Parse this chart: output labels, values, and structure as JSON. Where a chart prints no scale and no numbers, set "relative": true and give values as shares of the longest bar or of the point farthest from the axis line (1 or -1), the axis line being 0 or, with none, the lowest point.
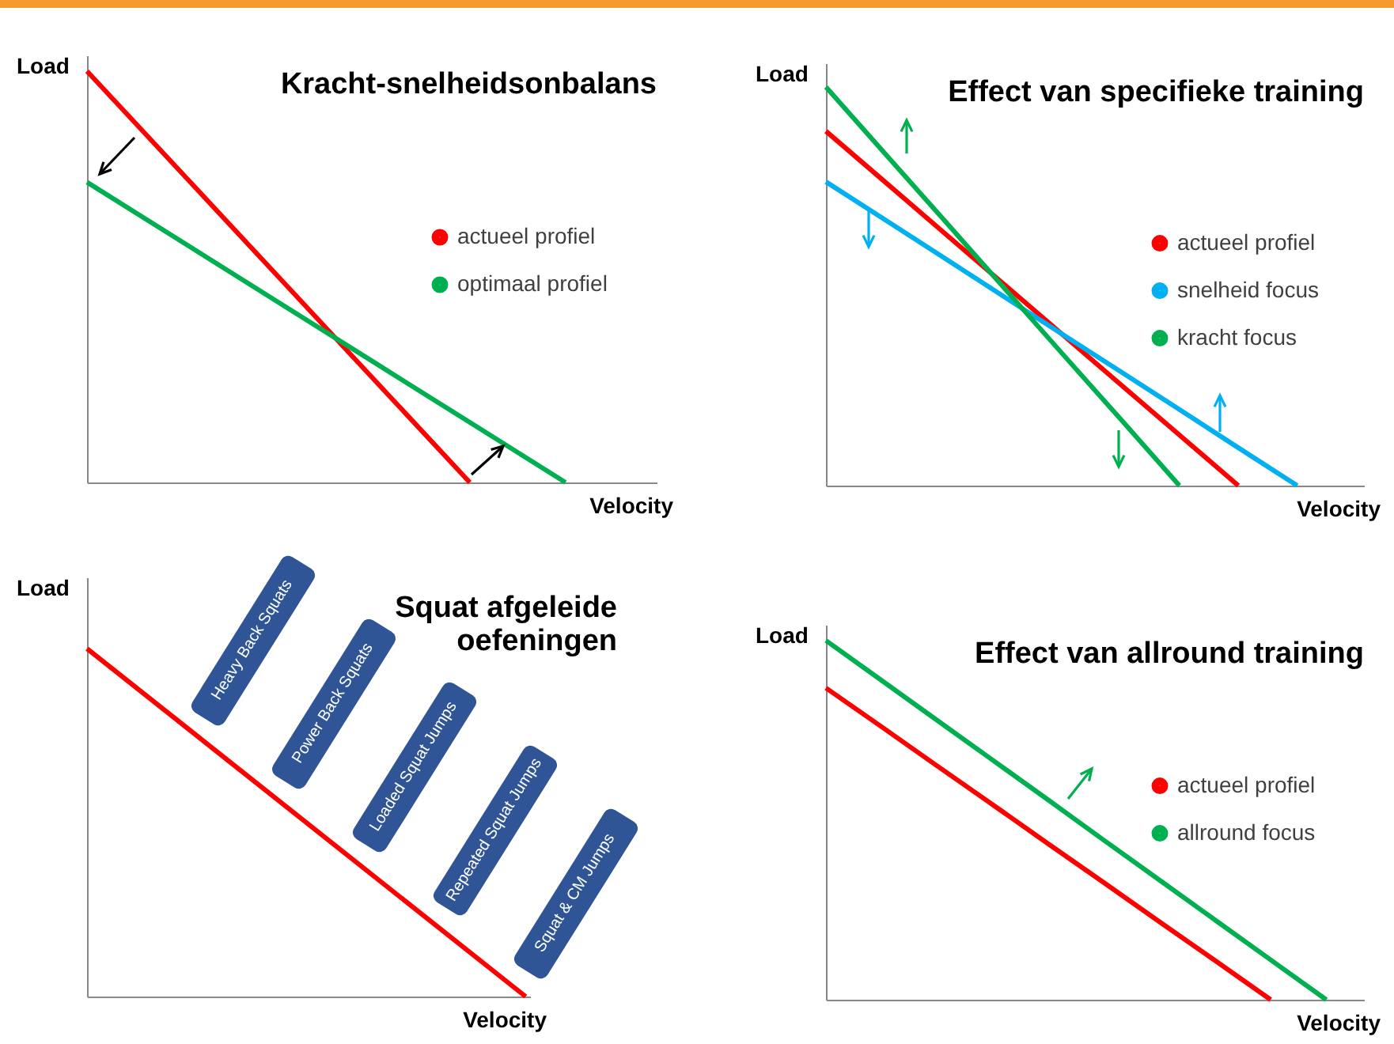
{
  "chart_data": [
    {
      "type": "line",
      "title": "Kracht-snelheidsonbalans",
      "xlabel": "Velocity",
      "ylabel": "Load",
      "relative": true,
      "legend": "right",
      "categories": [
        null,
        null,
        null,
        null,
        null,
        null
      ],
      "series": [
        {
          "name": "actueel profiel",
          "color": "#ff0000",
          "values": [
            1,
            0.75,
            0.5,
            0.25,
            0,
            null
          ]
        },
        {
          "name": "optimaal profiel",
          "color": "#00b050",
          "values": [
            0.73,
            0.584,
            0.438,
            0.292,
            0.146,
            0
          ]
        }
      ]
    },
    {
      "type": "line",
      "title": "Effect van specifieke training",
      "xlabel": "Velocity",
      "ylabel": "Load",
      "relative": true,
      "legend": "right",
      "categories": [
        null,
        null,
        null,
        null,
        null,
        null,
        null,
        null,
        null
      ],
      "series": [
        {
          "name": "actueel profiel",
          "color": "#ff0000",
          "values": [
            0.889,
            0.762,
            0.635,
            0.508,
            0.381,
            0.254,
            0.127,
            0,
            null
          ]
        },
        {
          "name": "snelheid focus",
          "color": "#00b0f0",
          "values": [
            0.762,
            0.667,
            0.572,
            0.476,
            0.381,
            0.286,
            0.191,
            0.095,
            0
          ]
        },
        {
          "name": "kracht focus",
          "color": "#00b050",
          "values": [
            1,
            0.833,
            0.667,
            0.5,
            0.333,
            0.167,
            0,
            null,
            null
          ]
        }
      ]
    },
    {
      "type": "line",
      "title": "Squat afgeleide oefeningen",
      "xlabel": "Velocity",
      "ylabel": "Load",
      "relative": true,
      "categories": [
        null,
        null
      ],
      "series": [
        {
          "color": "#ff0000",
          "values": [
            1,
            0
          ]
        }
      ],
      "annotations": [
        "Heavy Back Squats",
        "Power Back Squats",
        "Loaded Squat Jumps",
        "Repeated Squat Jumps",
        "Squat & CM Jumps"
      ]
    },
    {
      "type": "line",
      "title": "Effect van allround training",
      "xlabel": "Velocity",
      "ylabel": "Load",
      "relative": true,
      "legend": "right",
      "categories": [
        null,
        null,
        null,
        null,
        null,
        null,
        null,
        null,
        null,
        null
      ],
      "series": [
        {
          "name": "actueel profiel",
          "color": "#ff0000",
          "values": [
            0.868,
            0.76,
            0.651,
            0.543,
            0.434,
            0.326,
            0.217,
            0.109,
            0,
            null
          ]
        },
        {
          "name": "allround focus",
          "color": "#00b050",
          "values": [
            1,
            0.889,
            0.778,
            0.667,
            0.556,
            0.444,
            0.333,
            0.222,
            0.111,
            0
          ]
        }
      ]
    }
  ]
}
